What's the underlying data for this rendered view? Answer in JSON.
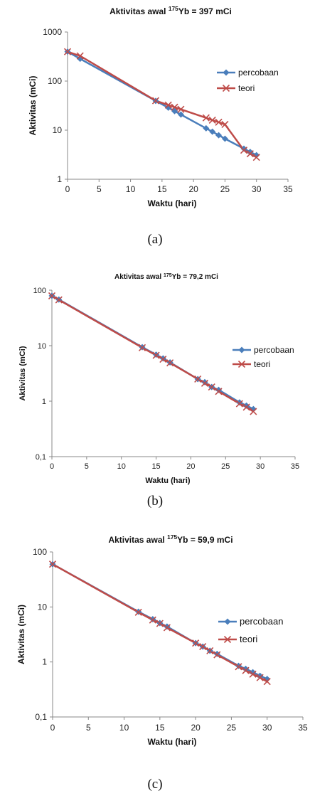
{
  "chart_data": [
    {
      "type": "line",
      "title_prefix": "Aktivitas awal ",
      "title_sup": "175",
      "title_suffix": "Yb = 397 mCi",
      "xlabel": "Waktu (hari)",
      "ylabel": "Aktivitas (mCi)",
      "yscale": "log",
      "xlim": [
        0,
        35
      ],
      "ylim": [
        1,
        1000
      ],
      "xticks": [
        "0",
        "5",
        "10",
        "15",
        "20",
        "25",
        "30",
        "35"
      ],
      "yticks": [
        "1",
        "10",
        "100",
        "1000"
      ],
      "legend_position": "right",
      "caption": "(a)",
      "series": [
        {
          "name": "percobaan",
          "color": "#4A7EBB",
          "marker": "diamond",
          "x": [
            0,
            2,
            14,
            16,
            17,
            18,
            22,
            23,
            24,
            25,
            28,
            29,
            30
          ],
          "y": [
            397,
            285,
            39.5,
            28.7,
            24.4,
            20.8,
            10.9,
            9.3,
            7.9,
            6.7,
            4.2,
            3.6,
            3.1
          ]
        },
        {
          "name": "teori",
          "color": "#BE4B48",
          "marker": "x",
          "x": [
            0,
            2,
            14,
            16,
            17,
            18,
            22,
            23,
            24,
            25,
            28,
            29,
            30
          ],
          "y": [
            397,
            326,
            39.8,
            32.5,
            29.4,
            26.6,
            17.8,
            16.0,
            14.5,
            13.1,
            3.9,
            3.3,
            2.8
          ]
        }
      ]
    },
    {
      "type": "line",
      "title_prefix": "Aktivitas awal ",
      "title_sup": "175",
      "title_suffix": "Yb = 79,2 mCi",
      "xlabel": "Waktu (hari)",
      "ylabel": "Aktivitas (mCi)",
      "yscale": "log",
      "xlim": [
        0,
        35
      ],
      "ylim": [
        0.1,
        100
      ],
      "xticks": [
        "0",
        "5",
        "10",
        "15",
        "20",
        "25",
        "30",
        "35"
      ],
      "yticks": [
        "0,1",
        "1",
        "10",
        "100"
      ],
      "legend_position": "right",
      "caption": "(b)",
      "series": [
        {
          "name": "percobaan",
          "color": "#4A7EBB",
          "marker": "diamond",
          "x": [
            0,
            1,
            13,
            15,
            16,
            17,
            21,
            22,
            23,
            24,
            27,
            28,
            29
          ],
          "y": [
            79.2,
            68,
            9.4,
            6.9,
            5.9,
            5.0,
            2.5,
            2.2,
            1.8,
            1.6,
            0.95,
            0.83,
            0.72
          ]
        },
        {
          "name": "teori",
          "color": "#BE4B48",
          "marker": "x",
          "x": [
            0,
            1,
            13,
            15,
            16,
            17,
            21,
            22,
            23,
            24,
            27,
            28,
            29
          ],
          "y": [
            79.2,
            67,
            9.2,
            6.7,
            5.7,
            4.9,
            2.5,
            2.1,
            1.8,
            1.5,
            0.9,
            0.78,
            0.65
          ]
        }
      ]
    },
    {
      "type": "line",
      "title_prefix": "Aktivitas  awal ",
      "title_sup": "175",
      "title_suffix": "Yb = 59,9 mCi",
      "xlabel": "Waktu (hari)",
      "ylabel": "Aktivitas (mCi)",
      "yscale": "log",
      "xlim": [
        0,
        35
      ],
      "ylim": [
        0.1,
        100
      ],
      "xticks": [
        "0",
        "5",
        "10",
        "15",
        "20",
        "25",
        "30",
        "35"
      ],
      "yticks": [
        "0,1",
        "1",
        "10",
        "100"
      ],
      "legend_position": "right",
      "caption": "(c)",
      "series": [
        {
          "name": "percobaan",
          "color": "#4A7EBB",
          "marker": "diamond",
          "x": [
            0,
            12,
            14,
            15,
            16,
            20,
            21,
            22,
            23,
            26,
            27,
            28,
            29,
            30
          ],
          "y": [
            59.9,
            8.2,
            6.0,
            5.1,
            4.4,
            2.2,
            1.9,
            1.6,
            1.4,
            0.85,
            0.75,
            0.65,
            0.56,
            0.49
          ]
        },
        {
          "name": "teori",
          "color": "#BE4B48",
          "marker": "x",
          "x": [
            0,
            12,
            14,
            15,
            16,
            20,
            21,
            22,
            23,
            26,
            27,
            28,
            29,
            30
          ],
          "y": [
            59.9,
            8.0,
            5.8,
            5.0,
            4.2,
            2.2,
            1.9,
            1.6,
            1.35,
            0.82,
            0.7,
            0.6,
            0.52,
            0.44
          ]
        }
      ]
    }
  ]
}
